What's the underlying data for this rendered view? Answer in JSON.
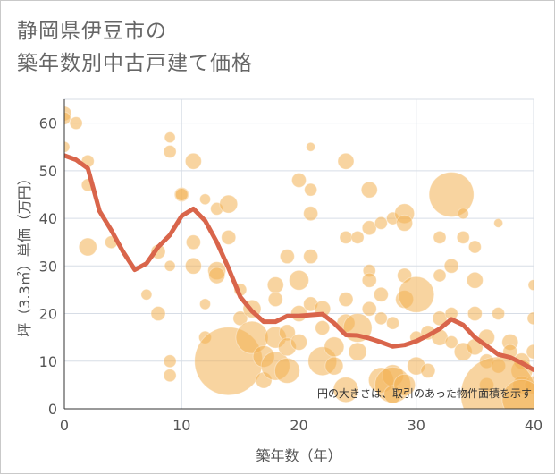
{
  "title_line1": "静岡県伊豆市の",
  "title_line2": "築年数別中古戸建て価格",
  "chart_data": {
    "type": "scatter",
    "xlabel": "築年数（年）",
    "ylabel": "坪（3.3㎡）単価（万円）",
    "xlim": [
      0,
      40
    ],
    "ylim": [
      0,
      65
    ],
    "xticks": [
      "0",
      "10",
      "20",
      "30",
      "40"
    ],
    "yticks": [
      "0",
      "10",
      "20",
      "30",
      "40",
      "50",
      "60"
    ],
    "annotation": "円の大きさは、取引のあった物件面積を示す",
    "grid": true,
    "colors": {
      "bubble": "#f2b052",
      "trend": "#d9654b",
      "grid": "#d7dde6",
      "axis": "#333333"
    },
    "trend_line": {
      "x": [
        0,
        1,
        2,
        3,
        4,
        5,
        6,
        7,
        8,
        9,
        10,
        11,
        12,
        13,
        14,
        15,
        16,
        17,
        18,
        19,
        20,
        21,
        22,
        23,
        24,
        25,
        26,
        27,
        28,
        29,
        30,
        31,
        32,
        33,
        34,
        35,
        36,
        37,
        38,
        39,
        40
      ],
      "y": [
        53.2,
        52.3,
        50.5,
        41.5,
        37.5,
        33.0,
        29.2,
        30.5,
        34.0,
        36.5,
        40.5,
        42.0,
        39.5,
        35.0,
        29.5,
        23.5,
        20.5,
        18.3,
        18.3,
        19.5,
        19.5,
        19.7,
        19.9,
        18.0,
        15.5,
        15.4,
        14.8,
        14.0,
        13.1,
        13.4,
        14.2,
        15.4,
        16.8,
        18.8,
        17.6,
        15.0,
        13.2,
        11.4,
        10.8,
        9.6,
        8.2
      ]
    },
    "points": [
      {
        "x": 0,
        "y": 62,
        "s": 8
      },
      {
        "x": 0,
        "y": 61,
        "s": 7
      },
      {
        "x": 1,
        "y": 60,
        "s": 7
      },
      {
        "x": 0,
        "y": 55,
        "s": 6
      },
      {
        "x": 2,
        "y": 52,
        "s": 7
      },
      {
        "x": 2,
        "y": 47,
        "s": 7
      },
      {
        "x": 2,
        "y": 34,
        "s": 10
      },
      {
        "x": 4,
        "y": 35,
        "s": 7
      },
      {
        "x": 7,
        "y": 24,
        "s": 6
      },
      {
        "x": 8,
        "y": 20,
        "s": 8
      },
      {
        "x": 8,
        "y": 33,
        "s": 8
      },
      {
        "x": 9,
        "y": 57,
        "s": 6
      },
      {
        "x": 9,
        "y": 54,
        "s": 7
      },
      {
        "x": 9,
        "y": 30,
        "s": 6
      },
      {
        "x": 9,
        "y": 10,
        "s": 7
      },
      {
        "x": 9,
        "y": 7,
        "s": 7
      },
      {
        "x": 10,
        "y": 45,
        "s": 8
      },
      {
        "x": 10,
        "y": 45,
        "s": 7
      },
      {
        "x": 11,
        "y": 52,
        "s": 9
      },
      {
        "x": 11,
        "y": 35,
        "s": 8
      },
      {
        "x": 11,
        "y": 30,
        "s": 9
      },
      {
        "x": 12,
        "y": 44,
        "s": 6
      },
      {
        "x": 12,
        "y": 22,
        "s": 6
      },
      {
        "x": 12,
        "y": 15,
        "s": 7
      },
      {
        "x": 13,
        "y": 42,
        "s": 7
      },
      {
        "x": 13,
        "y": 29,
        "s": 10
      },
      {
        "x": 13,
        "y": 28,
        "s": 9
      },
      {
        "x": 14,
        "y": 43,
        "s": 10
      },
      {
        "x": 14,
        "y": 36,
        "s": 8
      },
      {
        "x": 14,
        "y": 10,
        "s": 38
      },
      {
        "x": 15,
        "y": 25,
        "s": 7
      },
      {
        "x": 15,
        "y": 19,
        "s": 8
      },
      {
        "x": 16,
        "y": 15,
        "s": 18
      },
      {
        "x": 16,
        "y": 21,
        "s": 10
      },
      {
        "x": 17,
        "y": 11,
        "s": 12
      },
      {
        "x": 17,
        "y": 6,
        "s": 9
      },
      {
        "x": 18,
        "y": 26,
        "s": 9
      },
      {
        "x": 18,
        "y": 23,
        "s": 8
      },
      {
        "x": 18,
        "y": 15,
        "s": 12
      },
      {
        "x": 18,
        "y": 9,
        "s": 16
      },
      {
        "x": 19,
        "y": 32,
        "s": 8
      },
      {
        "x": 19,
        "y": 16,
        "s": 9
      },
      {
        "x": 19,
        "y": 13,
        "s": 10
      },
      {
        "x": 19,
        "y": 8,
        "s": 14
      },
      {
        "x": 20,
        "y": 48,
        "s": 8
      },
      {
        "x": 20,
        "y": 27,
        "s": 11
      },
      {
        "x": 20,
        "y": 20,
        "s": 9
      },
      {
        "x": 20,
        "y": 14,
        "s": 9
      },
      {
        "x": 21,
        "y": 55,
        "s": 5
      },
      {
        "x": 21,
        "y": 46,
        "s": 7
      },
      {
        "x": 21,
        "y": 41,
        "s": 8
      },
      {
        "x": 21,
        "y": 32,
        "s": 8
      },
      {
        "x": 21,
        "y": 22,
        "s": 8
      },
      {
        "x": 22,
        "y": 21,
        "s": 9
      },
      {
        "x": 22,
        "y": 17,
        "s": 8
      },
      {
        "x": 22,
        "y": 10,
        "s": 16
      },
      {
        "x": 23,
        "y": 13,
        "s": 11
      },
      {
        "x": 23,
        "y": 9,
        "s": 10
      },
      {
        "x": 24,
        "y": 52,
        "s": 9
      },
      {
        "x": 24,
        "y": 36,
        "s": 7
      },
      {
        "x": 24,
        "y": 23,
        "s": 8
      },
      {
        "x": 24,
        "y": 18,
        "s": 10
      },
      {
        "x": 24,
        "y": 4,
        "s": 14
      },
      {
        "x": 25,
        "y": 36,
        "s": 7
      },
      {
        "x": 25,
        "y": 17,
        "s": 16
      },
      {
        "x": 25,
        "y": 12,
        "s": 10
      },
      {
        "x": 26,
        "y": 46,
        "s": 9
      },
      {
        "x": 26,
        "y": 38,
        "s": 8
      },
      {
        "x": 26,
        "y": 29,
        "s": 7
      },
      {
        "x": 26,
        "y": 27,
        "s": 8
      },
      {
        "x": 26,
        "y": 21,
        "s": 8
      },
      {
        "x": 27,
        "y": 39,
        "s": 7
      },
      {
        "x": 27,
        "y": 24,
        "s": 8
      },
      {
        "x": 27,
        "y": 19,
        "s": 7
      },
      {
        "x": 27,
        "y": 6,
        "s": 14
      },
      {
        "x": 28,
        "y": 40,
        "s": 7
      },
      {
        "x": 28,
        "y": 18,
        "s": 7
      },
      {
        "x": 28,
        "y": 7,
        "s": 12
      },
      {
        "x": 28,
        "y": 5,
        "s": 20
      },
      {
        "x": 28,
        "y": 3,
        "s": 10
      },
      {
        "x": 29,
        "y": 41,
        "s": 11
      },
      {
        "x": 29,
        "y": 39,
        "s": 9
      },
      {
        "x": 29,
        "y": 28,
        "s": 8
      },
      {
        "x": 29,
        "y": 23,
        "s": 10
      },
      {
        "x": 29,
        "y": 5,
        "s": 12
      },
      {
        "x": 30,
        "y": 24,
        "s": 20
      },
      {
        "x": 30,
        "y": 15,
        "s": 7
      },
      {
        "x": 30,
        "y": 9,
        "s": 10
      },
      {
        "x": 31,
        "y": 16,
        "s": 8
      },
      {
        "x": 31,
        "y": 8,
        "s": 8
      },
      {
        "x": 32,
        "y": 36,
        "s": 7
      },
      {
        "x": 32,
        "y": 28,
        "s": 7
      },
      {
        "x": 32,
        "y": 19,
        "s": 8
      },
      {
        "x": 32,
        "y": 15,
        "s": 9
      },
      {
        "x": 33,
        "y": 45,
        "s": 25
      },
      {
        "x": 33,
        "y": 30,
        "s": 8
      },
      {
        "x": 33,
        "y": 20,
        "s": 7
      },
      {
        "x": 33,
        "y": 14,
        "s": 7
      },
      {
        "x": 34,
        "y": 41,
        "s": 6
      },
      {
        "x": 34,
        "y": 36,
        "s": 7
      },
      {
        "x": 34,
        "y": 12,
        "s": 10
      },
      {
        "x": 35,
        "y": 34,
        "s": 7
      },
      {
        "x": 35,
        "y": 27,
        "s": 9
      },
      {
        "x": 35,
        "y": 20,
        "s": 8
      },
      {
        "x": 35,
        "y": 13,
        "s": 9
      },
      {
        "x": 36,
        "y": 15,
        "s": 9
      },
      {
        "x": 36,
        "y": 10,
        "s": 8
      },
      {
        "x": 36,
        "y": 5,
        "s": 8
      },
      {
        "x": 37,
        "y": 39,
        "s": 5
      },
      {
        "x": 37,
        "y": 20,
        "s": 7
      },
      {
        "x": 37,
        "y": 9,
        "s": 8
      },
      {
        "x": 38,
        "y": 14,
        "s": 9
      },
      {
        "x": 38,
        "y": 12,
        "s": 8
      },
      {
        "x": 39,
        "y": 10,
        "s": 9
      },
      {
        "x": 39,
        "y": 8,
        "s": 12
      },
      {
        "x": 39,
        "y": 5,
        "s": 10
      },
      {
        "x": 40,
        "y": 26,
        "s": 6
      },
      {
        "x": 40,
        "y": 19,
        "s": 7
      },
      {
        "x": 40,
        "y": 12,
        "s": 8
      },
      {
        "x": 40,
        "y": 5,
        "s": 10
      },
      {
        "x": 37,
        "y": 3,
        "s": 42
      },
      {
        "x": 39,
        "y": 2,
        "s": 22
      }
    ]
  }
}
